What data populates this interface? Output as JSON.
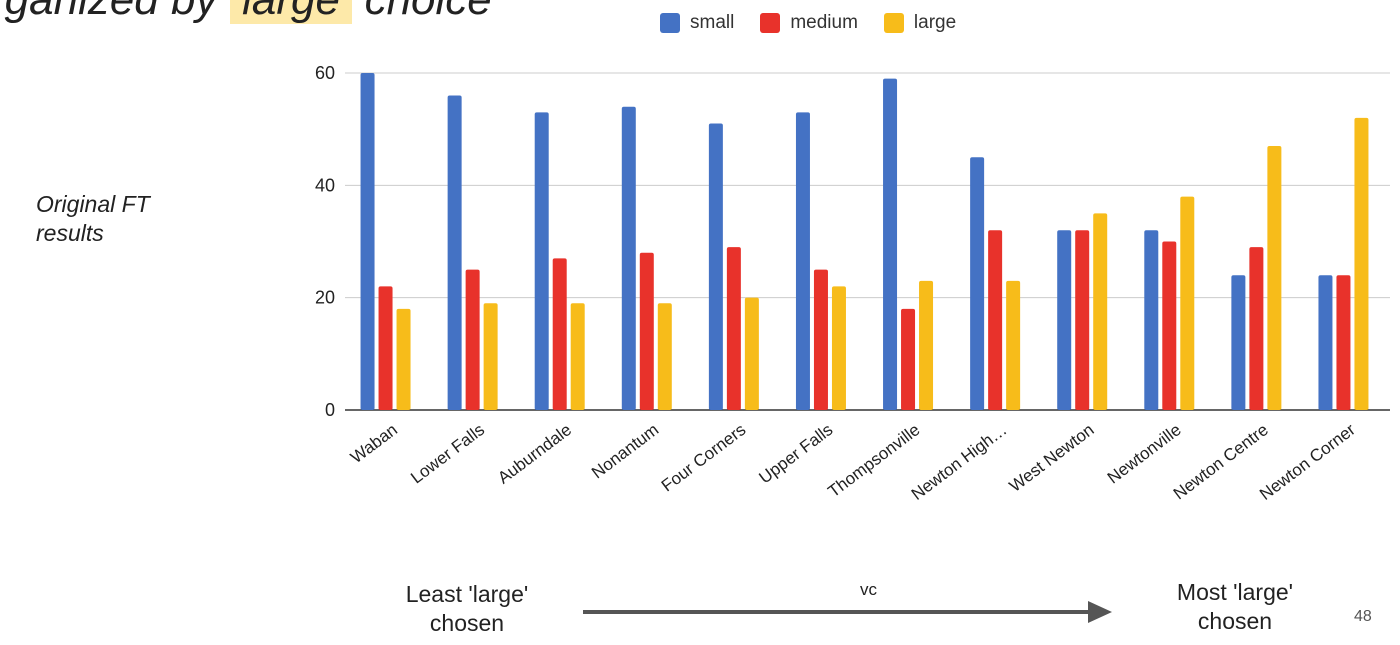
{
  "slide": {
    "title_prefix": "rganized by ",
    "title_highlight": "'large'",
    "title_suffix": " choice",
    "side_label": "Original FT results",
    "bottom_left": "Least 'large' chosen",
    "arrow_label": "vc",
    "bottom_right": "Most 'large' chosen",
    "page_number": "48"
  },
  "chart_data": {
    "type": "bar",
    "categories": [
      "Waban",
      "Lower Falls",
      "Auburndale",
      "Nonantum",
      "Four Corners",
      "Upper Falls",
      "Thompsonville",
      "Newton High…",
      "West Newton",
      "Newtonville",
      "Newton Centre",
      "Newton Corner"
    ],
    "series": [
      {
        "name": "small",
        "color": "#4472c4",
        "values": [
          60,
          56,
          53,
          54,
          51,
          53,
          59,
          45,
          32,
          32,
          24,
          24
        ]
      },
      {
        "name": "medium",
        "color": "#e8322b",
        "values": [
          22,
          25,
          27,
          28,
          29,
          25,
          18,
          32,
          32,
          30,
          29,
          24
        ]
      },
      {
        "name": "large",
        "color": "#f7bc1a",
        "values": [
          18,
          19,
          19,
          19,
          20,
          22,
          23,
          23,
          35,
          38,
          47,
          52
        ]
      }
    ],
    "yticks": [
      0,
      20,
      40,
      60
    ],
    "ylim": [
      0,
      60
    ],
    "grid": true,
    "legend_position": "top"
  }
}
